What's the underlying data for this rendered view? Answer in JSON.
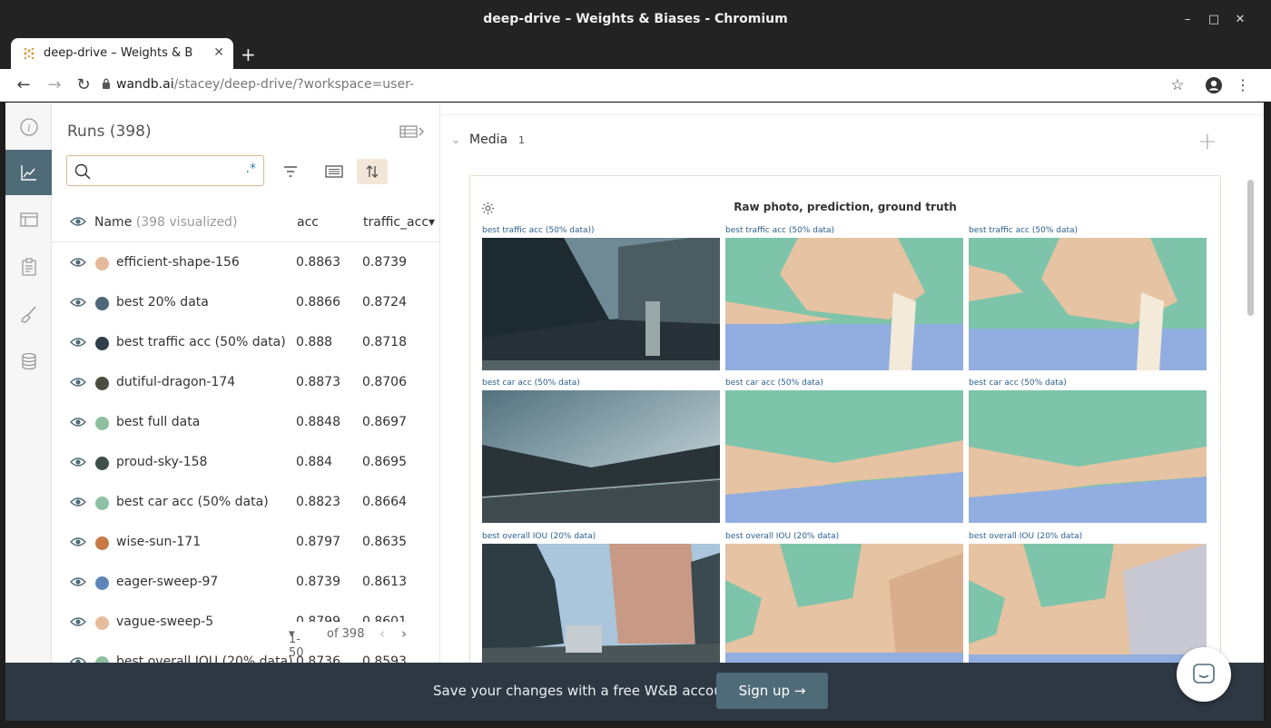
{
  "window": {
    "title": "deep-drive – Weights & Biases - Chromium"
  },
  "browser": {
    "tab_title": "deep-drive – Weights & B",
    "url_host": "wandb.ai",
    "url_path": "/stacey/deep-drive/?workspace=user-"
  },
  "runs": {
    "title": "Runs (398)",
    "search_placeholder": "",
    "regex_label": ".*",
    "columns": {
      "name": "Name",
      "visualized": "(398 visualized)",
      "acc": "acc",
      "traffic_acc": "traffic_acc▾"
    },
    "rows": [
      {
        "name": "efficient-shape-156",
        "acc": "0.8863",
        "traffic_acc": "0.8739",
        "color": "#e4b99a"
      },
      {
        "name": "best 20% data",
        "acc": "0.8866",
        "traffic_acc": "0.8724",
        "color": "#4d6878"
      },
      {
        "name": "best traffic acc (50% data)",
        "acc": "0.888",
        "traffic_acc": "0.8718",
        "color": "#2f3e4a"
      },
      {
        "name": "dutiful-dragon-174",
        "acc": "0.8873",
        "traffic_acc": "0.8706",
        "color": "#4d4d3f"
      },
      {
        "name": "best full data",
        "acc": "0.8848",
        "traffic_acc": "0.8697",
        "color": "#8fbf9f"
      },
      {
        "name": "proud-sky-158",
        "acc": "0.884",
        "traffic_acc": "0.8695",
        "color": "#3f4f4a"
      },
      {
        "name": "best car acc (50% data)",
        "acc": "0.8823",
        "traffic_acc": "0.8664",
        "color": "#8fc0a4"
      },
      {
        "name": "wise-sun-171",
        "acc": "0.8797",
        "traffic_acc": "0.8635",
        "color": "#c77a44"
      },
      {
        "name": "eager-sweep-97",
        "acc": "0.8739",
        "traffic_acc": "0.8613",
        "color": "#5f86b9"
      },
      {
        "name": "vague-sweep-5",
        "acc": "0.8799",
        "traffic_acc": "0.8601",
        "color": "#e6bd9c"
      },
      {
        "name": "best overall IOU (20% data)",
        "acc": "0.8736",
        "traffic_acc": "0.8593",
        "color": "#8fbf9f"
      }
    ],
    "pager": {
      "range": "1-50",
      "of_label": "of 398"
    }
  },
  "media": {
    "section_title": "Media",
    "count": "1",
    "panel_title": "Raw photo, prediction, ground truth",
    "captions": [
      [
        "best traffic acc (50% data))",
        "best traffic acc (50% data)",
        "best traffic acc (50% data)"
      ],
      [
        "best car acc (50% data)",
        "best car acc (50% data)",
        "best car acc (50% data)"
      ],
      [
        "best overall IOU (20% data)",
        "best overall IOU (20% data)",
        "best overall IOU (20% data)"
      ]
    ],
    "seg_colors": {
      "sky": "#7dc4aa",
      "building": "#e6c3a2",
      "road": "#92aee0",
      "white": "#f4ead9"
    }
  },
  "banner": {
    "text": "Save your changes with a free W&B account.",
    "signup": "Sign up"
  },
  "icons": {
    "rail": [
      "info-icon",
      "chart-icon",
      "table-icon",
      "clipboard-icon",
      "brush-icon",
      "database-icon"
    ]
  }
}
